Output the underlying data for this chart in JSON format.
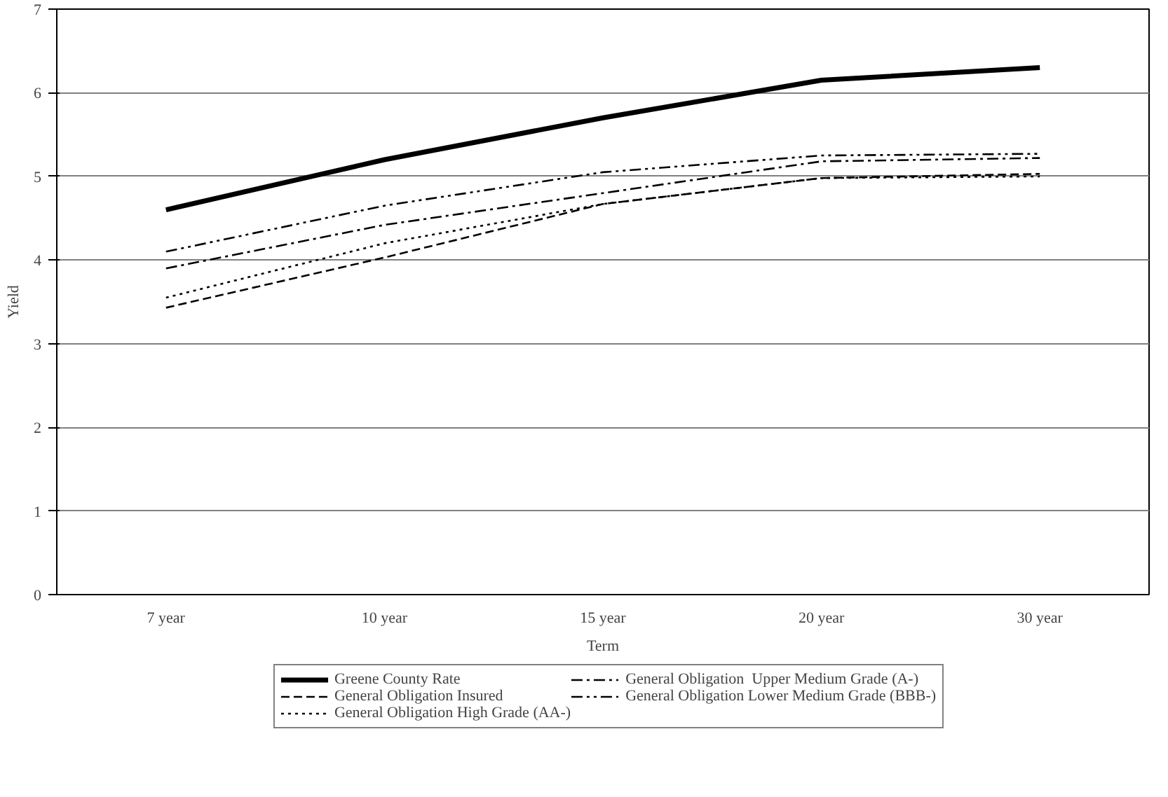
{
  "chart_data": {
    "type": "line",
    "xlabel": "Term",
    "ylabel": "Yield",
    "categories": [
      "7 year",
      "10 year",
      "15 year",
      "20 year",
      "30 year"
    ],
    "ylim": [
      0,
      7
    ],
    "yticks": [
      0,
      1,
      2,
      3,
      4,
      5,
      6,
      7
    ],
    "grid": "y",
    "legend": "bottom",
    "marker": "none",
    "series": [
      {
        "name": "Greene County Rate",
        "color": "#000000",
        "line_style": "solid",
        "values": [
          4.6,
          5.2,
          5.7,
          6.15,
          6.3
        ]
      },
      {
        "name": "General Obligation Insured",
        "color": "#000000",
        "line_style": "dashed",
        "values": [
          3.43,
          4.03,
          4.67,
          4.98,
          5.03
        ]
      },
      {
        "name": "General Obligation High Grade (AA-)",
        "color": "#000000",
        "line_style": "dotted",
        "values": [
          3.55,
          4.2,
          4.67,
          4.98,
          5.0
        ]
      },
      {
        "name": "General Obligation  Upper Medium Grade (A-)",
        "color": "#000000",
        "line_style": "dashdot",
        "values": [
          3.9,
          4.42,
          4.8,
          5.18,
          5.22
        ]
      },
      {
        "name": "General Obligation Lower Medium Grade (BBB-)",
        "color": "#000000",
        "line_style": "dashdotdot",
        "values": [
          4.1,
          4.65,
          5.05,
          5.25,
          5.27
        ]
      }
    ]
  }
}
